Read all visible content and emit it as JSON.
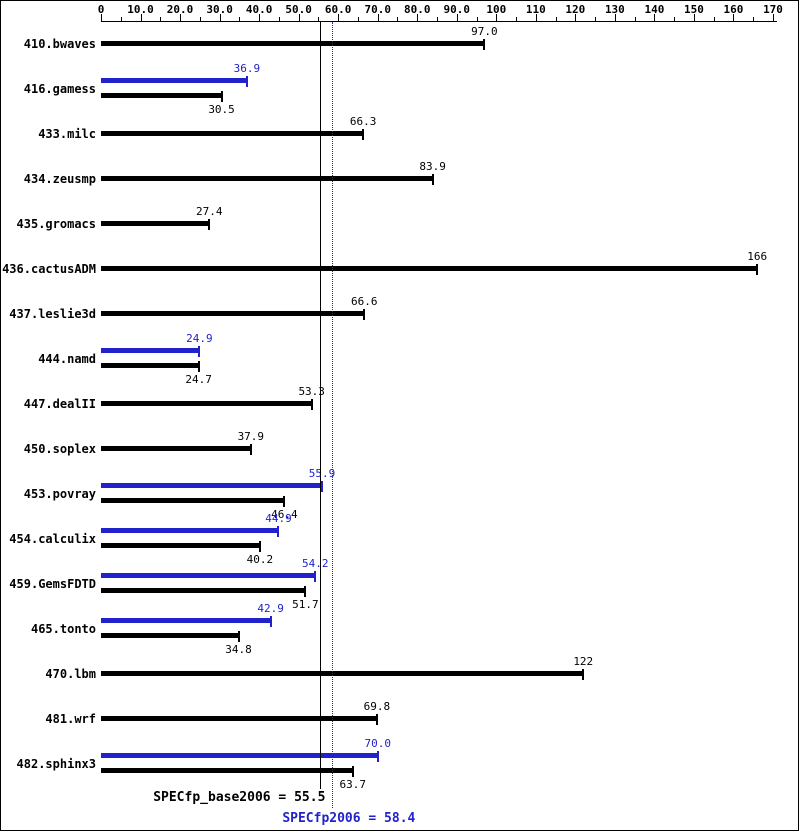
{
  "chart_data": {
    "type": "bar",
    "orientation": "horizontal",
    "title": "",
    "axis": {
      "min": 0,
      "max": 170,
      "minor_step": 5,
      "ticks": [
        {
          "value": 0,
          "label": "0"
        },
        {
          "value": 10,
          "label": "10.0"
        },
        {
          "value": 20,
          "label": "20.0"
        },
        {
          "value": 30,
          "label": "30.0"
        },
        {
          "value": 40,
          "label": "40.0"
        },
        {
          "value": 50,
          "label": "50.0"
        },
        {
          "value": 60,
          "label": "60.0"
        },
        {
          "value": 70,
          "label": "70.0"
        },
        {
          "value": 80,
          "label": "80.0"
        },
        {
          "value": 90,
          "label": "90.0"
        },
        {
          "value": 100,
          "label": "100"
        },
        {
          "value": 110,
          "label": "110"
        },
        {
          "value": 120,
          "label": "120"
        },
        {
          "value": 130,
          "label": "130"
        },
        {
          "value": 140,
          "label": "140"
        },
        {
          "value": 150,
          "label": "150"
        },
        {
          "value": 160,
          "label": "160"
        },
        {
          "value": 170,
          "label": "170"
        }
      ]
    },
    "series_colors": {
      "base": "#000000",
      "peak": "#2222cc"
    },
    "benchmarks": [
      {
        "name": "410.bwaves",
        "base": 97.0,
        "base_label": "97.0"
      },
      {
        "name": "416.gamess",
        "base": 30.5,
        "base_label": "30.5",
        "peak": 36.9,
        "peak_label": "36.9"
      },
      {
        "name": "433.milc",
        "base": 66.3,
        "base_label": "66.3"
      },
      {
        "name": "434.zeusmp",
        "base": 83.9,
        "base_label": "83.9"
      },
      {
        "name": "435.gromacs",
        "base": 27.4,
        "base_label": "27.4"
      },
      {
        "name": "436.cactusADM",
        "base": 166,
        "base_label": "166"
      },
      {
        "name": "437.leslie3d",
        "base": 66.6,
        "base_label": "66.6"
      },
      {
        "name": "444.namd",
        "base": 24.7,
        "base_label": "24.7",
        "peak": 24.9,
        "peak_label": "24.9"
      },
      {
        "name": "447.dealII",
        "base": 53.3,
        "base_label": "53.3"
      },
      {
        "name": "450.soplex",
        "base": 37.9,
        "base_label": "37.9"
      },
      {
        "name": "453.povray",
        "base": 46.4,
        "base_label": "46.4",
        "peak": 55.9,
        "peak_label": "55.9"
      },
      {
        "name": "454.calculix",
        "base": 40.2,
        "base_label": "40.2",
        "peak": 44.9,
        "peak_label": "44.9"
      },
      {
        "name": "459.GemsFDTD",
        "base": 51.7,
        "base_label": "51.7",
        "peak": 54.2,
        "peak_label": "54.2"
      },
      {
        "name": "465.tonto",
        "base": 34.8,
        "base_label": "34.8",
        "peak": 42.9,
        "peak_label": "42.9"
      },
      {
        "name": "470.lbm",
        "base": 122,
        "base_label": "122"
      },
      {
        "name": "481.wrf",
        "base": 69.8,
        "base_label": "69.8"
      },
      {
        "name": "482.sphinx3",
        "base": 63.7,
        "base_label": "63.7",
        "peak": 70.0,
        "peak_label": "70.0"
      }
    ],
    "reference_lines": [
      {
        "id": "base-mean",
        "label": "SPECfp_base2006 = 55.5",
        "value": 55.5,
        "style": "solid",
        "color": "#000000"
      },
      {
        "id": "peak-mean",
        "label": "SPECfp2006 = 58.4",
        "value": 58.4,
        "style": "dotted",
        "color": "#2222cc"
      }
    ]
  }
}
